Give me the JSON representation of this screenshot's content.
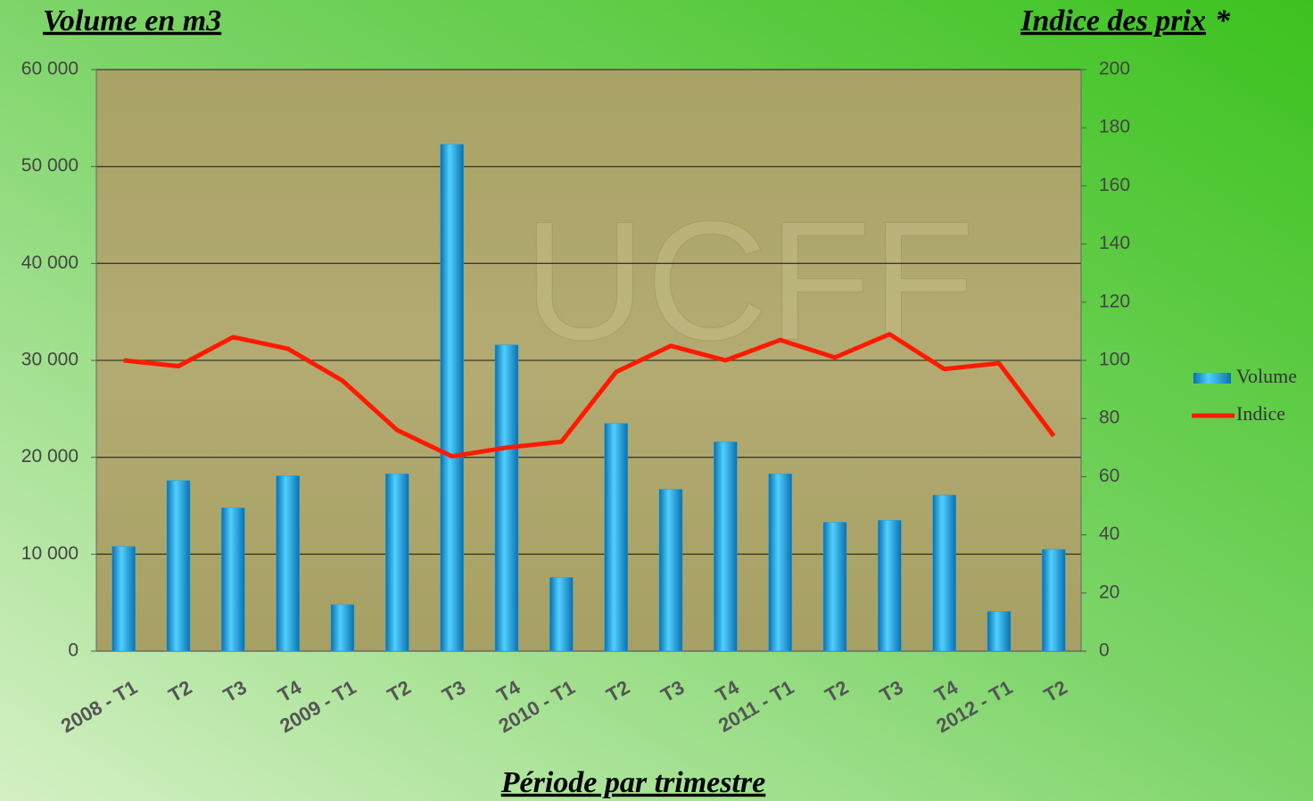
{
  "chart_data": {
    "type": "bar",
    "y_title": "Volume en m3",
    "y2_title": "Indice des prix",
    "y2_title_note": "*",
    "x_title": "Période par trimestre",
    "watermark": "UCFF",
    "categories": [
      "2008 - T1",
      "T2",
      "T3",
      "T4",
      "2009 - T1",
      "T2",
      "T3",
      "T4",
      "2010 - T1",
      "T2",
      "T3",
      "T4",
      "2011 - T1",
      "T2",
      "T3",
      "T4",
      "2012 - T1",
      "T2"
    ],
    "series": [
      {
        "name": "Volume",
        "type": "bar",
        "color": "#1aa3e0",
        "values": [
          10800,
          17600,
          14800,
          18100,
          4800,
          18300,
          52300,
          31600,
          7600,
          23500,
          16700,
          21600,
          18300,
          13300,
          13500,
          16100,
          4100,
          10500
        ]
      },
      {
        "name": "Indice",
        "type": "line",
        "axis": "y2",
        "color": "#ff1a00",
        "values": [
          100,
          98,
          108,
          104,
          93,
          76,
          67,
          70,
          72,
          96,
          105,
          100,
          107,
          101,
          109,
          97,
          99,
          74
        ]
      }
    ],
    "ylim": [
      0,
      60000
    ],
    "yticks": [
      0,
      {
        "value": 10000,
        "label": "10 000"
      },
      {
        "value": 20000,
        "label": "20 000"
      },
      {
        "value": 30000,
        "label": "30 000"
      },
      {
        "value": 40000,
        "label": "40 000"
      },
      {
        "value": 50000,
        "label": "50 000"
      },
      {
        "value": 60000,
        "label": "60 000"
      }
    ],
    "y2lim": [
      0,
      200
    ],
    "y2ticks": [
      0,
      20,
      40,
      60,
      80,
      100,
      120,
      140,
      160,
      180,
      200
    ],
    "grid": true,
    "legend": "right"
  }
}
